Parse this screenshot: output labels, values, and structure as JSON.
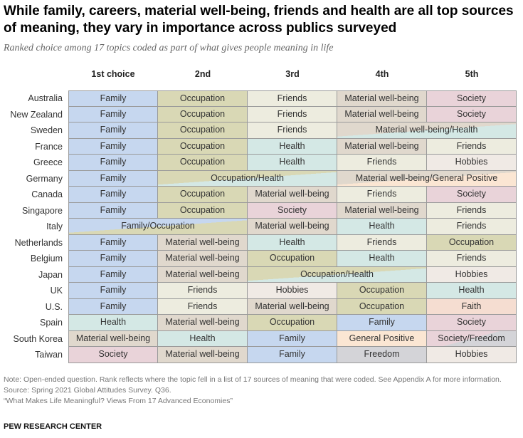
{
  "title": "While family, careers, material well-being, friends and health are all top sources of meaning, they vary in importance across publics surveyed",
  "subtitle": "Ranked choice among 17 topics coded as part of what gives people meaning in life",
  "colors": {
    "Family": "#c6d7ef",
    "Occupation": "#d9d8b5",
    "Friends": "#edecdf",
    "Material well-being": "#e0d8cd",
    "Society": "#e9d3d9",
    "Health": "#d4e8e5",
    "Hobbies": "#f0eae5",
    "General Positive": "#fbe6d3",
    "Freedom": "#d4d4d8",
    "Faith": "#f5ddd1"
  },
  "chart_data": {
    "type": "table",
    "columns": [
      "1st choice",
      "2nd",
      "3rd",
      "4th",
      "5th"
    ],
    "rows": [
      {
        "country": "Australia",
        "cells": [
          {
            "text": "Family",
            "span": 1,
            "topics": [
              "Family"
            ]
          },
          {
            "text": "Occupation",
            "span": 1,
            "topics": [
              "Occupation"
            ]
          },
          {
            "text": "Friends",
            "span": 1,
            "topics": [
              "Friends"
            ]
          },
          {
            "text": "Material well-being",
            "span": 1,
            "topics": [
              "Material well-being"
            ]
          },
          {
            "text": "Society",
            "span": 1,
            "topics": [
              "Society"
            ]
          }
        ]
      },
      {
        "country": "New Zealand",
        "cells": [
          {
            "text": "Family",
            "span": 1,
            "topics": [
              "Family"
            ]
          },
          {
            "text": "Occupation",
            "span": 1,
            "topics": [
              "Occupation"
            ]
          },
          {
            "text": "Friends",
            "span": 1,
            "topics": [
              "Friends"
            ]
          },
          {
            "text": "Material well-being",
            "span": 1,
            "topics": [
              "Material well-being"
            ]
          },
          {
            "text": "Society",
            "span": 1,
            "topics": [
              "Society"
            ]
          }
        ]
      },
      {
        "country": "Sweden",
        "cells": [
          {
            "text": "Family",
            "span": 1,
            "topics": [
              "Family"
            ]
          },
          {
            "text": "Occupation",
            "span": 1,
            "topics": [
              "Occupation"
            ]
          },
          {
            "text": "Friends",
            "span": 1,
            "topics": [
              "Friends"
            ]
          },
          {
            "text": "Material well-being/Health",
            "span": 2,
            "topics": [
              "Material well-being",
              "Health"
            ]
          }
        ]
      },
      {
        "country": "France",
        "cells": [
          {
            "text": "Family",
            "span": 1,
            "topics": [
              "Family"
            ]
          },
          {
            "text": "Occupation",
            "span": 1,
            "topics": [
              "Occupation"
            ]
          },
          {
            "text": "Health",
            "span": 1,
            "topics": [
              "Health"
            ]
          },
          {
            "text": "Material well-being",
            "span": 1,
            "topics": [
              "Material well-being"
            ]
          },
          {
            "text": "Friends",
            "span": 1,
            "topics": [
              "Friends"
            ]
          }
        ]
      },
      {
        "country": "Greece",
        "cells": [
          {
            "text": "Family",
            "span": 1,
            "topics": [
              "Family"
            ]
          },
          {
            "text": "Occupation",
            "span": 1,
            "topics": [
              "Occupation"
            ]
          },
          {
            "text": "Health",
            "span": 1,
            "topics": [
              "Health"
            ]
          },
          {
            "text": "Friends",
            "span": 1,
            "topics": [
              "Friends"
            ]
          },
          {
            "text": "Hobbies",
            "span": 1,
            "topics": [
              "Hobbies"
            ]
          }
        ]
      },
      {
        "country": "Germany",
        "cells": [
          {
            "text": "Family",
            "span": 1,
            "topics": [
              "Family"
            ]
          },
          {
            "text": "Occupation/Health",
            "span": 2,
            "topics": [
              "Occupation",
              "Health"
            ]
          },
          {
            "text": "Material well-being/General Positive",
            "span": 2,
            "topics": [
              "Material well-being",
              "General Positive"
            ]
          }
        ]
      },
      {
        "country": "Canada",
        "cells": [
          {
            "text": "Family",
            "span": 1,
            "topics": [
              "Family"
            ]
          },
          {
            "text": "Occupation",
            "span": 1,
            "topics": [
              "Occupation"
            ]
          },
          {
            "text": "Material well-being",
            "span": 1,
            "topics": [
              "Material well-being"
            ]
          },
          {
            "text": "Friends",
            "span": 1,
            "topics": [
              "Friends"
            ]
          },
          {
            "text": "Society",
            "span": 1,
            "topics": [
              "Society"
            ]
          }
        ]
      },
      {
        "country": "Singapore",
        "cells": [
          {
            "text": "Family",
            "span": 1,
            "topics": [
              "Family"
            ]
          },
          {
            "text": "Occupation",
            "span": 1,
            "topics": [
              "Occupation"
            ]
          },
          {
            "text": "Society",
            "span": 1,
            "topics": [
              "Society"
            ]
          },
          {
            "text": "Material well-being",
            "span": 1,
            "topics": [
              "Material well-being"
            ]
          },
          {
            "text": "Friends",
            "span": 1,
            "topics": [
              "Friends"
            ]
          }
        ]
      },
      {
        "country": "Italy",
        "cells": [
          {
            "text": "Family/Occupation",
            "span": 2,
            "topics": [
              "Family",
              "Occupation"
            ]
          },
          {
            "text": "Material well-being",
            "span": 1,
            "topics": [
              "Material well-being"
            ]
          },
          {
            "text": "Health",
            "span": 1,
            "topics": [
              "Health"
            ]
          },
          {
            "text": "Friends",
            "span": 1,
            "topics": [
              "Friends"
            ]
          }
        ]
      },
      {
        "country": "Netherlands",
        "cells": [
          {
            "text": "Family",
            "span": 1,
            "topics": [
              "Family"
            ]
          },
          {
            "text": "Material well-being",
            "span": 1,
            "topics": [
              "Material well-being"
            ]
          },
          {
            "text": "Health",
            "span": 1,
            "topics": [
              "Health"
            ]
          },
          {
            "text": "Friends",
            "span": 1,
            "topics": [
              "Friends"
            ]
          },
          {
            "text": "Occupation",
            "span": 1,
            "topics": [
              "Occupation"
            ]
          }
        ]
      },
      {
        "country": "Belgium",
        "cells": [
          {
            "text": "Family",
            "span": 1,
            "topics": [
              "Family"
            ]
          },
          {
            "text": "Material well-being",
            "span": 1,
            "topics": [
              "Material well-being"
            ]
          },
          {
            "text": "Occupation",
            "span": 1,
            "topics": [
              "Occupation"
            ]
          },
          {
            "text": "Health",
            "span": 1,
            "topics": [
              "Health"
            ]
          },
          {
            "text": "Friends",
            "span": 1,
            "topics": [
              "Friends"
            ]
          }
        ]
      },
      {
        "country": "Japan",
        "cells": [
          {
            "text": "Family",
            "span": 1,
            "topics": [
              "Family"
            ]
          },
          {
            "text": "Material well-being",
            "span": 1,
            "topics": [
              "Material well-being"
            ]
          },
          {
            "text": "Occupation/Health",
            "span": 2,
            "topics": [
              "Occupation",
              "Health"
            ]
          },
          {
            "text": "Hobbies",
            "span": 1,
            "topics": [
              "Hobbies"
            ]
          }
        ]
      },
      {
        "country": "UK",
        "cells": [
          {
            "text": "Family",
            "span": 1,
            "topics": [
              "Family"
            ]
          },
          {
            "text": "Friends",
            "span": 1,
            "topics": [
              "Friends"
            ]
          },
          {
            "text": "Hobbies",
            "span": 1,
            "topics": [
              "Hobbies"
            ]
          },
          {
            "text": "Occupation",
            "span": 1,
            "topics": [
              "Occupation"
            ]
          },
          {
            "text": "Health",
            "span": 1,
            "topics": [
              "Health"
            ]
          }
        ]
      },
      {
        "country": "U.S.",
        "cells": [
          {
            "text": "Family",
            "span": 1,
            "topics": [
              "Family"
            ]
          },
          {
            "text": "Friends",
            "span": 1,
            "topics": [
              "Friends"
            ]
          },
          {
            "text": "Material well-being",
            "span": 1,
            "topics": [
              "Material well-being"
            ]
          },
          {
            "text": "Occupation",
            "span": 1,
            "topics": [
              "Occupation"
            ]
          },
          {
            "text": "Faith",
            "span": 1,
            "topics": [
              "Faith"
            ]
          }
        ]
      },
      {
        "country": "Spain",
        "cells": [
          {
            "text": "Health",
            "span": 1,
            "topics": [
              "Health"
            ]
          },
          {
            "text": "Material well-being",
            "span": 1,
            "topics": [
              "Material well-being"
            ]
          },
          {
            "text": "Occupation",
            "span": 1,
            "topics": [
              "Occupation"
            ]
          },
          {
            "text": "Family",
            "span": 1,
            "topics": [
              "Family"
            ]
          },
          {
            "text": "Society",
            "span": 1,
            "topics": [
              "Society"
            ]
          }
        ]
      },
      {
        "country": "South Korea",
        "cells": [
          {
            "text": "Material well-being",
            "span": 1,
            "topics": [
              "Material well-being"
            ]
          },
          {
            "text": "Health",
            "span": 1,
            "topics": [
              "Health"
            ]
          },
          {
            "text": "Family",
            "span": 1,
            "topics": [
              "Family"
            ]
          },
          {
            "text": "General Positive",
            "span": 1,
            "topics": [
              "General Positive"
            ]
          },
          {
            "text": "Society/Freedom",
            "span": 1,
            "topics": [
              "Society",
              "Freedom"
            ]
          }
        ]
      },
      {
        "country": "Taiwan",
        "cells": [
          {
            "text": "Society",
            "span": 1,
            "topics": [
              "Society"
            ]
          },
          {
            "text": "Material well-being",
            "span": 1,
            "topics": [
              "Material well-being"
            ]
          },
          {
            "text": "Family",
            "span": 1,
            "topics": [
              "Family"
            ]
          },
          {
            "text": "Freedom",
            "span": 1,
            "topics": [
              "Freedom"
            ]
          },
          {
            "text": "Hobbies",
            "span": 1,
            "topics": [
              "Hobbies"
            ]
          }
        ]
      }
    ]
  },
  "notes": {
    "note": "Note: Open-ended question. Rank reflects where the topic fell in a list of 17 sources of meaning that were coded. See Appendix A for more information.",
    "source": "Source: Spring 2021 Global Attitudes Survey. Q36.",
    "report": "“What Makes Life Meaningful? Views From 17 Advanced Economies”"
  },
  "brand": "PEW RESEARCH CENTER"
}
